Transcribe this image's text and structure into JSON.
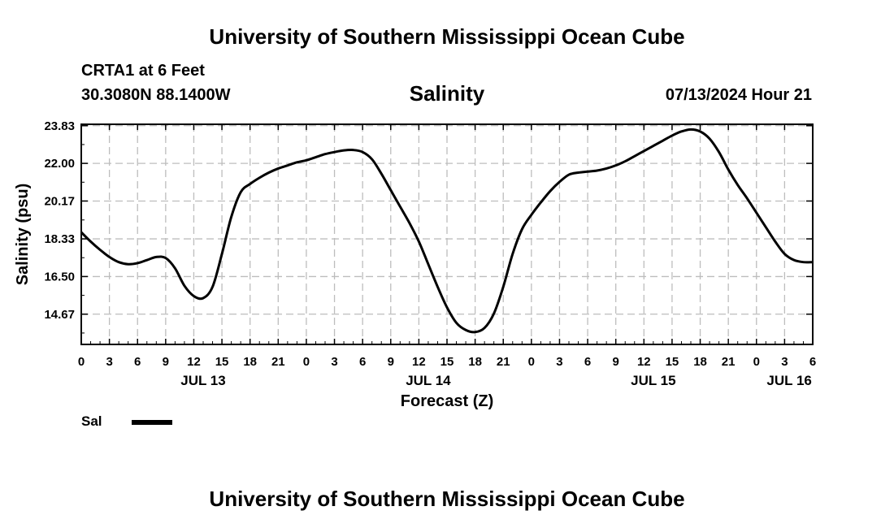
{
  "header": {
    "title_top": "University of Southern Mississippi Ocean Cube",
    "station": "CRTA1 at 6 Feet",
    "coords": "30.3080N  88.1400W",
    "datetime": "07/13/2024 Hour 21",
    "title_bottom": "University of Southern Mississippi Ocean Cube"
  },
  "colors": {
    "line": "#000000",
    "grid": "#bdbdbd",
    "axis": "#000000",
    "background": "#ffffff"
  },
  "chart_data": {
    "type": "line",
    "title": "Salinity",
    "xlabel": "Forecast (Z)",
    "ylabel": "Salinity (psu)",
    "xlim": [
      0,
      78
    ],
    "ylim": [
      13.2,
      23.9
    ],
    "grid": true,
    "legend": {
      "position": "bottom-left",
      "entries": [
        "Sal"
      ]
    },
    "y_ticks": [
      {
        "value": 14.67,
        "label": "14.67"
      },
      {
        "value": 16.5,
        "label": "16.50"
      },
      {
        "value": 18.33,
        "label": "18.33"
      },
      {
        "value": 20.17,
        "label": "20.17"
      },
      {
        "value": 22.0,
        "label": "22.00"
      },
      {
        "value": 23.83,
        "label": "23.83"
      }
    ],
    "x_ticks": [
      {
        "value": 0,
        "label": "0"
      },
      {
        "value": 3,
        "label": "3"
      },
      {
        "value": 6,
        "label": "6"
      },
      {
        "value": 9,
        "label": "9"
      },
      {
        "value": 12,
        "label": "12"
      },
      {
        "value": 15,
        "label": "15"
      },
      {
        "value": 18,
        "label": "18"
      },
      {
        "value": 21,
        "label": "21"
      },
      {
        "value": 24,
        "label": "0"
      },
      {
        "value": 27,
        "label": "3"
      },
      {
        "value": 30,
        "label": "6"
      },
      {
        "value": 33,
        "label": "9"
      },
      {
        "value": 36,
        "label": "12"
      },
      {
        "value": 39,
        "label": "15"
      },
      {
        "value": 42,
        "label": "18"
      },
      {
        "value": 45,
        "label": "21"
      },
      {
        "value": 48,
        "label": "0"
      },
      {
        "value": 51,
        "label": "3"
      },
      {
        "value": 54,
        "label": "6"
      },
      {
        "value": 57,
        "label": "9"
      },
      {
        "value": 60,
        "label": "12"
      },
      {
        "value": 63,
        "label": "15"
      },
      {
        "value": 66,
        "label": "18"
      },
      {
        "value": 69,
        "label": "21"
      },
      {
        "value": 72,
        "label": "0"
      },
      {
        "value": 75,
        "label": "3"
      },
      {
        "value": 78,
        "label": "6"
      }
    ],
    "day_labels": [
      {
        "value": 13,
        "label": "JUL 13"
      },
      {
        "value": 37,
        "label": "JUL 14"
      },
      {
        "value": 61,
        "label": "JUL 15"
      },
      {
        "value": 75.5,
        "label": "JUL 16"
      }
    ],
    "series": [
      {
        "name": "Sal",
        "x": [
          0,
          1,
          2,
          3,
          4,
          5,
          6,
          7,
          8,
          9,
          10,
          11,
          12,
          13,
          14,
          15,
          16,
          17,
          18,
          19,
          20,
          21,
          22,
          23,
          24,
          25,
          26,
          27,
          28,
          29,
          30,
          31,
          32,
          33,
          34,
          35,
          36,
          37,
          38,
          39,
          40,
          41,
          42,
          43,
          44,
          45,
          46,
          47,
          48,
          49,
          50,
          51,
          52,
          53,
          54,
          55,
          56,
          57,
          58,
          59,
          60,
          61,
          62,
          63,
          64,
          65,
          66,
          67,
          68,
          69,
          70,
          71,
          72,
          73,
          74,
          75,
          76,
          77,
          78
        ],
        "values": [
          18.65,
          18.2,
          17.8,
          17.45,
          17.2,
          17.1,
          17.15,
          17.3,
          17.45,
          17.4,
          16.9,
          16.05,
          15.55,
          15.45,
          16.0,
          17.6,
          19.4,
          20.6,
          21.0,
          21.3,
          21.55,
          21.75,
          21.9,
          22.05,
          22.15,
          22.3,
          22.45,
          22.55,
          22.63,
          22.65,
          22.55,
          22.2,
          21.5,
          20.7,
          19.9,
          19.1,
          18.2,
          17.1,
          16.0,
          15.0,
          14.25,
          13.9,
          13.8,
          14.0,
          14.7,
          16.0,
          17.6,
          18.8,
          19.5,
          20.1,
          20.65,
          21.1,
          21.45,
          21.55,
          21.6,
          21.65,
          21.75,
          21.9,
          22.1,
          22.35,
          22.6,
          22.85,
          23.1,
          23.35,
          23.55,
          23.65,
          23.55,
          23.2,
          22.55,
          21.7,
          20.95,
          20.3,
          19.6,
          18.9,
          18.2,
          17.6,
          17.3,
          17.2,
          17.2
        ]
      }
    ]
  }
}
